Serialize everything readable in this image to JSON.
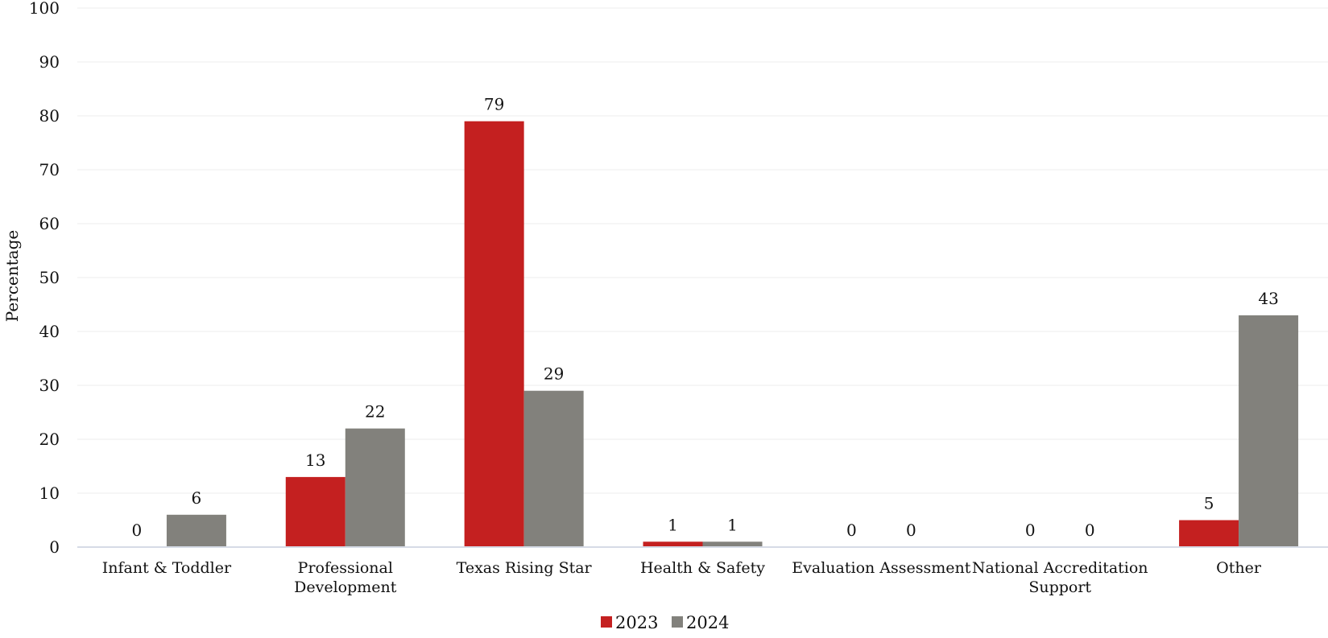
{
  "chart_data": {
    "type": "bar",
    "title": "",
    "xlabel": "",
    "ylabel": "Percentage",
    "ylim": [
      0,
      100
    ],
    "yticks": [
      0,
      10,
      20,
      30,
      40,
      50,
      60,
      70,
      80,
      90,
      100
    ],
    "grid": true,
    "legend_position": "bottom-center",
    "categories": [
      [
        "Infant & Toddler"
      ],
      [
        "Professional",
        "Development"
      ],
      [
        "Texas Rising Star"
      ],
      [
        "Health & Safety"
      ],
      [
        "Evaluation Assessment"
      ],
      [
        "National Accreditation",
        "Support"
      ],
      [
        "Other"
      ]
    ],
    "series": [
      {
        "name": "2023",
        "color": "#c42020",
        "values": [
          0,
          13,
          79,
          1,
          0,
          0,
          5
        ]
      },
      {
        "name": "2024",
        "color": "#82817c",
        "values": [
          6,
          22,
          29,
          1,
          0,
          0,
          43
        ]
      }
    ]
  }
}
